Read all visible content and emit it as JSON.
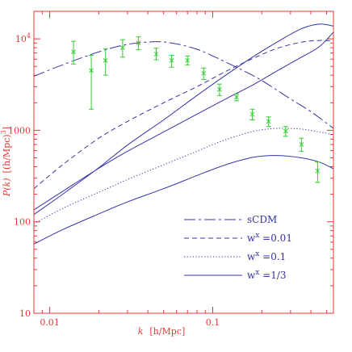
{
  "chart_data": {
    "type": "line",
    "xscale": "log",
    "yscale": "log",
    "xlim": [
      0.008,
      0.55
    ],
    "ylim": [
      10,
      20000
    ],
    "xlabel_var": "k",
    "xlabel_unit": "[h/Mpc]",
    "ylabel_var": "P(k)",
    "ylabel_unit": "[(h/Mpc)",
    "ylabel_exp": "3",
    "ylabel_close": "]",
    "xticks": [
      {
        "value": 0.01,
        "label": "0.01"
      },
      {
        "value": 0.1,
        "label": "0.1"
      }
    ],
    "yticks": [
      {
        "value": 10,
        "label": "10",
        "exp": ""
      },
      {
        "value": 100,
        "label": "100",
        "exp": ""
      },
      {
        "value": 1000,
        "label": "1000",
        "exp": ""
      },
      {
        "value": 10000,
        "label": "10",
        "exp": "4"
      }
    ],
    "legend_position": "bottom-right",
    "series": [
      {
        "name": "sCDM",
        "dash": "longdash",
        "x": [
          0.008,
          0.012,
          0.02,
          0.03,
          0.045,
          0.06,
          0.08,
          0.1,
          0.15,
          0.2,
          0.3,
          0.4,
          0.55
        ],
        "y": [
          3900,
          5200,
          7200,
          8700,
          9300,
          8800,
          7700,
          6500,
          4600,
          3500,
          2200,
          1600,
          1050
        ]
      },
      {
        "name": "w^x = 0.01",
        "dash": "dash",
        "x": [
          0.008,
          0.012,
          0.02,
          0.03,
          0.05,
          0.08,
          0.12,
          0.18,
          0.25,
          0.35,
          0.45,
          0.55
        ],
        "y": [
          230,
          420,
          820,
          1250,
          2000,
          3000,
          4400,
          6200,
          7900,
          9200,
          9600,
          9500
        ]
      },
      {
        "name": "w^x = 0.1",
        "dash": "dot",
        "x": [
          0.008,
          0.012,
          0.02,
          0.03,
          0.05,
          0.08,
          0.12,
          0.18,
          0.25,
          0.35,
          0.45,
          0.55
        ],
        "y": [
          95,
          140,
          210,
          290,
          420,
          590,
          790,
          980,
          1050,
          1030,
          960,
          890
        ]
      },
      {
        "name": "w^x = 1/3",
        "dash": "solid",
        "x": [
          0.008,
          0.012,
          0.02,
          0.03,
          0.05,
          0.08,
          0.12,
          0.18,
          0.25,
          0.35,
          0.45,
          0.55
        ],
        "y": [
          57,
          82,
          122,
          165,
          230,
          320,
          420,
          510,
          530,
          500,
          450,
          380
        ]
      },
      {
        "name": "",
        "dash": "solid",
        "legend": false,
        "x": [
          0.008,
          0.012,
          0.02,
          0.03,
          0.05,
          0.08,
          0.12,
          0.18,
          0.25,
          0.35,
          0.45,
          0.55
        ],
        "y": [
          120,
          200,
          390,
          690,
          1300,
          2400,
          4000,
          6500,
          9300,
          12900,
          14500,
          13800
        ]
      },
      {
        "name": "",
        "dash": "solid",
        "legend": false,
        "x": [
          0.008,
          0.012,
          0.02,
          0.03,
          0.05,
          0.08,
          0.12,
          0.18,
          0.25,
          0.35,
          0.45,
          0.55
        ],
        "y": [
          135,
          215,
          385,
          590,
          960,
          1500,
          2200,
          3200,
          4500,
          6300,
          8200,
          11800
        ]
      }
    ],
    "points": {
      "k": [
        0.014,
        0.018,
        0.022,
        0.028,
        0.035,
        0.045,
        0.056,
        0.07,
        0.088,
        0.11,
        0.14,
        0.175,
        0.22,
        0.28,
        0.35,
        0.44
      ],
      "P": [
        7200,
        4500,
        5800,
        8000,
        9000,
        6800,
        5800,
        5800,
        4200,
        2800,
        2300,
        1500,
        1250,
        980,
        700,
        360
      ],
      "low": [
        5300,
        1700,
        4000,
        6300,
        7600,
        5900,
        4900,
        5200,
        3600,
        2400,
        2100,
        1300,
        1100,
        860,
        590,
        270
      ],
      "high": [
        9400,
        6600,
        7800,
        9800,
        10500,
        7900,
        6600,
        6500,
        4800,
        3200,
        2500,
        1700,
        1400,
        1100,
        820,
        450
      ]
    }
  },
  "legend": [
    {
      "label": "sCDM",
      "exp": "",
      "value": ""
    },
    {
      "label": "w",
      "exp": "x",
      "value": " =0.01"
    },
    {
      "label": "w",
      "exp": "x",
      "value": " =0.1"
    },
    {
      "label": "w",
      "exp": "x",
      "value": " =1/3"
    }
  ],
  "colors": {
    "axis": "#e53935",
    "curves": "#3333aa",
    "points": "#33cc33"
  }
}
